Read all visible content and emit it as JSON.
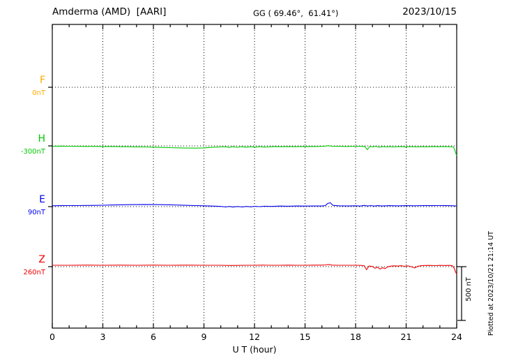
{
  "header": {
    "station": "Amderma (AMD)  [AARI]",
    "coordinates": "GG ( 69.46°,  61.41°)",
    "date": "2023/10/15"
  },
  "axis": {
    "title": "U T (hour)",
    "tick_hours": [
      0,
      3,
      6,
      9,
      12,
      15,
      18,
      21,
      24
    ],
    "tick_labels": [
      "0",
      "3",
      "6",
      "9",
      "12",
      "15",
      "18",
      "21",
      "24"
    ],
    "grid_hours": [
      3,
      6,
      9,
      12,
      15,
      18,
      21
    ],
    "x_min": 0,
    "x_max": 24
  },
  "scalebar": {
    "label": "500 nT",
    "span_nT": 500
  },
  "footer": {
    "plotted_at": "Plotted at 2023/10/21 21:14 UT"
  },
  "chart_data": {
    "type": "line",
    "title": "Amderma (AMD) [AARI] magnetogram 2023/10/15",
    "xlabel": "U T (hour)",
    "x_range": [
      0,
      24
    ],
    "grid": "dotted vertical every 3 h, dotted horizontal at each component baseline",
    "scale_bar_nT": 500,
    "point_format": "[UT_hour, deviation_nT_from_baseline]",
    "series": [
      {
        "name": "F",
        "baseline_label": "0nT",
        "baseline_nT": 0,
        "color": "#ffaa00",
        "points": []
      },
      {
        "name": "H",
        "baseline_label": "-300nT",
        "baseline_nT": -300,
        "color": "#00c800",
        "points": [
          [
            0,
            -3
          ],
          [
            0.5,
            -2
          ],
          [
            1,
            -3
          ],
          [
            1.5,
            -4
          ],
          [
            2,
            -5
          ],
          [
            2.5,
            -4
          ],
          [
            3,
            -6
          ],
          [
            3.5,
            -5
          ],
          [
            4,
            -7
          ],
          [
            4.5,
            -8
          ],
          [
            5,
            -9
          ],
          [
            5.5,
            -10
          ],
          [
            6,
            -12
          ],
          [
            6.5,
            -14
          ],
          [
            7,
            -16
          ],
          [
            7.5,
            -18
          ],
          [
            8,
            -20
          ],
          [
            8.5,
            -21
          ],
          [
            9,
            -19
          ],
          [
            9.3,
            -15
          ],
          [
            9.6,
            -12
          ],
          [
            10,
            -10
          ],
          [
            10.3,
            -8
          ],
          [
            10.5,
            -14
          ],
          [
            10.7,
            -8
          ],
          [
            11,
            -13
          ],
          [
            11.2,
            -7
          ],
          [
            11.5,
            -12
          ],
          [
            11.8,
            -8
          ],
          [
            12,
            -12
          ],
          [
            12.3,
            -7
          ],
          [
            12.6,
            -11
          ],
          [
            13,
            -8
          ],
          [
            13.3,
            -6
          ],
          [
            13.6,
            -8
          ],
          [
            14,
            -6
          ],
          [
            14.5,
            -7
          ],
          [
            15,
            -5
          ],
          [
            15.5,
            -6
          ],
          [
            16,
            -4
          ],
          [
            16.2,
            -2
          ],
          [
            16.4,
            2
          ],
          [
            16.6,
            -3
          ],
          [
            17,
            -4
          ],
          [
            17.5,
            -5
          ],
          [
            18,
            -4
          ],
          [
            18.3,
            -4
          ],
          [
            18.55,
            -6
          ],
          [
            18.7,
            -35
          ],
          [
            18.85,
            -4
          ],
          [
            19,
            -10
          ],
          [
            19.2,
            -4
          ],
          [
            19.4,
            -12
          ],
          [
            19.6,
            -6
          ],
          [
            19.8,
            -10
          ],
          [
            20,
            -7
          ],
          [
            20.3,
            -10
          ],
          [
            20.6,
            -6
          ],
          [
            21,
            -9
          ],
          [
            21.3,
            -6
          ],
          [
            21.6,
            -9
          ],
          [
            22,
            -7
          ],
          [
            22.3,
            -8
          ],
          [
            22.6,
            -6
          ],
          [
            23,
            -8
          ],
          [
            23.3,
            -6
          ],
          [
            23.6,
            -8
          ],
          [
            23.8,
            -10
          ],
          [
            23.85,
            -25
          ],
          [
            23.9,
            -45
          ],
          [
            23.95,
            -70
          ],
          [
            24,
            -90
          ]
        ]
      },
      {
        "name": "E",
        "baseline_label": "90nT",
        "baseline_nT": 90,
        "color": "#0000ee",
        "points": [
          [
            0,
            8
          ],
          [
            0.5,
            9
          ],
          [
            1,
            10
          ],
          [
            1.5,
            10
          ],
          [
            2,
            11
          ],
          [
            2.5,
            12
          ],
          [
            3,
            13
          ],
          [
            3.5,
            15
          ],
          [
            4,
            17
          ],
          [
            4.5,
            18
          ],
          [
            5,
            19
          ],
          [
            5.5,
            20
          ],
          [
            6,
            19
          ],
          [
            6.5,
            18
          ],
          [
            7,
            17
          ],
          [
            7.5,
            14
          ],
          [
            8,
            12
          ],
          [
            8.5,
            10
          ],
          [
            9,
            8
          ],
          [
            9.5,
            5
          ],
          [
            10,
            2
          ],
          [
            10.3,
            -3
          ],
          [
            10.5,
            2
          ],
          [
            10.7,
            -4
          ],
          [
            11,
            1
          ],
          [
            11.3,
            -3
          ],
          [
            11.5,
            2
          ],
          [
            11.8,
            -2
          ],
          [
            12,
            3
          ],
          [
            12.3,
            0
          ],
          [
            12.6,
            4
          ],
          [
            13,
            2
          ],
          [
            13.5,
            5
          ],
          [
            14,
            4
          ],
          [
            14.5,
            6
          ],
          [
            15,
            5
          ],
          [
            15.5,
            6
          ],
          [
            16,
            6
          ],
          [
            16.2,
            10
          ],
          [
            16.35,
            30
          ],
          [
            16.5,
            36
          ],
          [
            16.65,
            12
          ],
          [
            17,
            8
          ],
          [
            17.5,
            6
          ],
          [
            18,
            8
          ],
          [
            18.3,
            5
          ],
          [
            18.5,
            12
          ],
          [
            18.7,
            6
          ],
          [
            18.9,
            10
          ],
          [
            19.1,
            5
          ],
          [
            19.3,
            9
          ],
          [
            19.6,
            6
          ],
          [
            20,
            9
          ],
          [
            20.5,
            7
          ],
          [
            21,
            9
          ],
          [
            21.5,
            8
          ],
          [
            22,
            10
          ],
          [
            22.5,
            9
          ],
          [
            23,
            10
          ],
          [
            23.5,
            9
          ],
          [
            23.8,
            8
          ],
          [
            24,
            5
          ]
        ]
      },
      {
        "name": "Z",
        "baseline_label": "260nT",
        "baseline_nT": 260,
        "color": "#ee0000",
        "points": [
          [
            0,
            13
          ],
          [
            1,
            13
          ],
          [
            2,
            14
          ],
          [
            3,
            13
          ],
          [
            4,
            14
          ],
          [
            5,
            13
          ],
          [
            6,
            14
          ],
          [
            7,
            13
          ],
          [
            8,
            14
          ],
          [
            9,
            13
          ],
          [
            10,
            13
          ],
          [
            10.5,
            11
          ],
          [
            11,
            12
          ],
          [
            11.5,
            13
          ],
          [
            12,
            13
          ],
          [
            12.5,
            14
          ],
          [
            13,
            13
          ],
          [
            13.5,
            13
          ],
          [
            14,
            14
          ],
          [
            14.5,
            13
          ],
          [
            15,
            13
          ],
          [
            15.5,
            14
          ],
          [
            16,
            14
          ],
          [
            16.2,
            16
          ],
          [
            16.4,
            20
          ],
          [
            16.6,
            14
          ],
          [
            17,
            13
          ],
          [
            17.5,
            13
          ],
          [
            18,
            13
          ],
          [
            18.3,
            12
          ],
          [
            18.5,
            10
          ],
          [
            18.65,
            -28
          ],
          [
            18.8,
            6
          ],
          [
            19,
            2
          ],
          [
            19.15,
            -15
          ],
          [
            19.3,
            -5
          ],
          [
            19.45,
            -22
          ],
          [
            19.6,
            -10
          ],
          [
            19.75,
            -18
          ],
          [
            19.9,
            -2
          ],
          [
            20.1,
            5
          ],
          [
            20.3,
            8
          ],
          [
            20.5,
            5
          ],
          [
            20.7,
            9
          ],
          [
            20.9,
            3
          ],
          [
            21.1,
            8
          ],
          [
            21.3,
            0
          ],
          [
            21.5,
            -12
          ],
          [
            21.7,
            4
          ],
          [
            21.9,
            9
          ],
          [
            22.1,
            11
          ],
          [
            22.4,
            12
          ],
          [
            22.7,
            10
          ],
          [
            23,
            12
          ],
          [
            23.3,
            11
          ],
          [
            23.6,
            12
          ],
          [
            23.75,
            8
          ],
          [
            23.85,
            -15
          ],
          [
            23.92,
            -45
          ],
          [
            24,
            -70
          ]
        ]
      }
    ]
  }
}
